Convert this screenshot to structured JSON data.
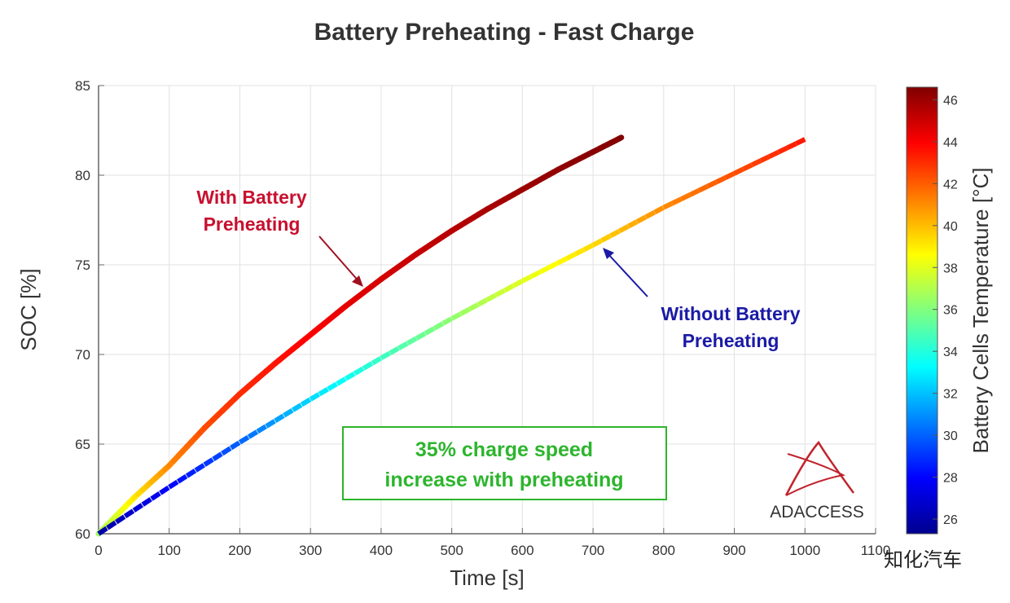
{
  "chart_data": {
    "type": "line",
    "title": "Battery Preheating - Fast Charge",
    "xlabel": "Time [s]",
    "ylabel": "SOC [%]",
    "xlim": [
      0,
      1100
    ],
    "ylim": [
      60,
      85
    ],
    "xticks": [
      "0",
      "100",
      "200",
      "300",
      "400",
      "500",
      "600",
      "700",
      "800",
      "900",
      "1000",
      "1100"
    ],
    "yticks": [
      "60",
      "65",
      "70",
      "75",
      "80",
      "85"
    ],
    "grid": true,
    "colorbar": {
      "label": "Battery Cells Temperature [°C]",
      "range": [
        25.3,
        46.6
      ],
      "ticks": [
        "26",
        "28",
        "30",
        "32",
        "34",
        "36",
        "38",
        "40",
        "42",
        "44",
        "46"
      ],
      "colormap": "jet"
    },
    "series": [
      {
        "name": "With Battery Preheating",
        "style": "solid",
        "x": [
          0,
          50,
          100,
          150,
          200,
          250,
          300,
          350,
          400,
          450,
          500,
          550,
          600,
          650,
          700,
          740
        ],
        "y": [
          60,
          62.0,
          63.8,
          65.9,
          67.8,
          69.5,
          71.1,
          72.7,
          74.2,
          75.6,
          76.9,
          78.1,
          79.2,
          80.3,
          81.3,
          82.1
        ],
        "temperature": [
          36.5,
          39,
          41,
          42.3,
          43,
          43.5,
          44,
          44.4,
          44.8,
          45.1,
          45.4,
          45.7,
          46,
          46.2,
          46.4,
          46.5
        ]
      },
      {
        "name": "Without Battery Preheating",
        "style": "dashed",
        "x": [
          0,
          100,
          200,
          300,
          400,
          500,
          600,
          700,
          800,
          900,
          1000
        ],
        "y": [
          60,
          62.6,
          65.1,
          67.5,
          69.8,
          72.0,
          74.1,
          76.1,
          78.2,
          80.1,
          82.0
        ],
        "temperature": [
          26,
          28,
          30,
          32.5,
          34.5,
          36.3,
          38,
          39.4,
          41,
          42.3,
          43.5
        ]
      }
    ],
    "annotations": {
      "with_label_line1": "With Battery",
      "with_label_line2": "Preheating",
      "without_label_line1": "Without Battery",
      "without_label_line2": "Preheating",
      "box_line1": "35% charge speed",
      "box_line2": "increase with preheating"
    },
    "colors": {
      "with_label": "#c8102e",
      "without_label": "#1a1aa6",
      "box": "#2db52d"
    }
  },
  "logo": {
    "text": "ADACCESS"
  },
  "watermark": {
    "text": "知化汽车"
  }
}
